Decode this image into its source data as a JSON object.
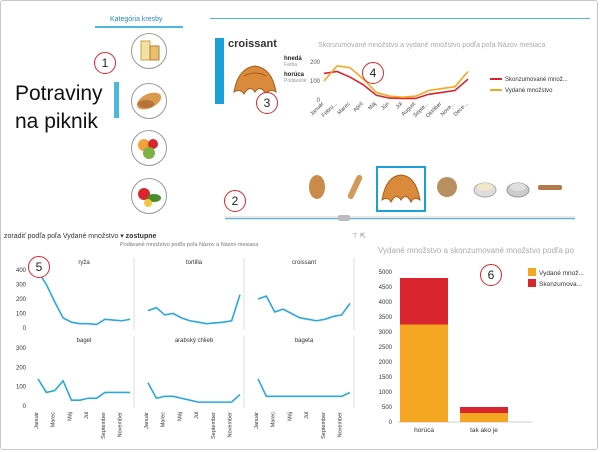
{
  "category": {
    "title": "Kategória kresby"
  },
  "main_title": {
    "line1": "Potraviny",
    "line2": "na piknik"
  },
  "card": {
    "title": "croissant",
    "props": [
      {
        "value": "hnedá",
        "label": "Farba"
      },
      {
        "value": "horúca",
        "label": "Podávané"
      }
    ]
  },
  "line_chart_top": {
    "title": "Skonzumované množstvo a vydané množstvo podľa poľa Názov mesiaca",
    "legend": [
      "Skonzumované množ...",
      "Vydané množstvo"
    ],
    "yticks": [
      "200",
      "100",
      "0"
    ],
    "xticks": [
      "Január",
      "Febru...",
      "Marec",
      "Apríl",
      "Máj",
      "Jún",
      "Júl",
      "August",
      "Septe...",
      "Október",
      "Nove...",
      "Dece..."
    ]
  },
  "sort": {
    "label": "zoradiť podľa poľa Vydané množstvo",
    "order": "zostupne"
  },
  "small_multiples": {
    "title": "Podávané množstvo podľa poľa Názov a Názov mesiaca",
    "panels": [
      "ryža",
      "tortilla",
      "croissant",
      "bagel",
      "arabský chlieb",
      "bageta"
    ],
    "yticks_top": [
      "400",
      "300",
      "200",
      "100",
      "0"
    ],
    "yticks_bottom": [
      "300",
      "200",
      "100",
      "0"
    ],
    "xticks": [
      "Január",
      "Marec",
      "Máj",
      "Júl",
      "September",
      "November"
    ]
  },
  "bar_chart": {
    "title": "Vydané množstvo a skonzumované množstvo podľa po",
    "legend": [
      "Vydané množ...",
      "Skonzumova..."
    ],
    "yticks": [
      "5000",
      "4500",
      "4000",
      "3500",
      "3000",
      "2500",
      "2000",
      "1500",
      "1000",
      "500",
      "0"
    ],
    "categories": [
      "horúca",
      "tak ako je"
    ]
  },
  "callouts": [
    "1",
    "2",
    "3",
    "4",
    "5",
    "6"
  ],
  "colors": {
    "accent": "#1aa0d8",
    "series_red": "#d9262e",
    "series_orange": "#f5a623",
    "sm_line": "#29a8e0"
  },
  "chart_data": [
    {
      "type": "line",
      "title": "Skonzumované množstvo a vydané množstvo podľa poľa Názov mesiaca",
      "x": [
        "Január",
        "Febru...",
        "Marec",
        "Apríl",
        "Máj",
        "Jún",
        "Júl",
        "August",
        "Septe...",
        "Október",
        "Nove...",
        "Dece..."
      ],
      "series": [
        {
          "name": "Skonzumované množ...",
          "values": [
            140,
            150,
            120,
            80,
            25,
            10,
            8,
            8,
            30,
            40,
            50,
            110
          ]
        },
        {
          "name": "Vydané množstvo",
          "values": [
            100,
            180,
            170,
            110,
            40,
            20,
            15,
            20,
            50,
            60,
            70,
            150
          ]
        }
      ],
      "ylim": [
        0,
        200
      ]
    },
    {
      "type": "bar",
      "title": "Vydané množstvo a skonzumované množstvo podľa po",
      "categories": [
        "horúca",
        "tak ako je"
      ],
      "series": [
        {
          "name": "Vydané množ...",
          "values": [
            3250,
            300
          ]
        },
        {
          "name": "Skonzumova...",
          "values": [
            1550,
            200
          ]
        }
      ],
      "ylim": [
        0,
        5000
      ]
    },
    {
      "type": "line",
      "title": "Podávané množstvo podľa poľa Názov a Názov mesiaca",
      "x": [
        "Január",
        "Február",
        "Marec",
        "Apríl",
        "Máj",
        "Jún",
        "Júl",
        "August",
        "September",
        "Október",
        "November",
        "December"
      ],
      "series": [
        {
          "name": "ryža",
          "values": [
            390,
            300,
            180,
            70,
            40,
            30,
            30,
            25,
            60,
            55,
            50,
            60
          ]
        },
        {
          "name": "tortilla",
          "values": [
            120,
            140,
            90,
            100,
            70,
            50,
            40,
            30,
            35,
            40,
            50,
            230
          ]
        },
        {
          "name": "croissant",
          "values": [
            200,
            220,
            110,
            130,
            100,
            70,
            60,
            50,
            60,
            80,
            90,
            170
          ]
        },
        {
          "name": "bagel",
          "values": [
            140,
            70,
            80,
            130,
            30,
            30,
            40,
            40,
            70,
            70,
            70,
            70
          ]
        },
        {
          "name": "arabský chlieb",
          "values": [
            120,
            40,
            50,
            50,
            40,
            30,
            20,
            20,
            20,
            20,
            20,
            60
          ]
        },
        {
          "name": "bageta",
          "values": [
            140,
            50,
            50,
            50,
            50,
            50,
            50,
            50,
            50,
            50,
            50,
            70
          ]
        }
      ]
    }
  ]
}
